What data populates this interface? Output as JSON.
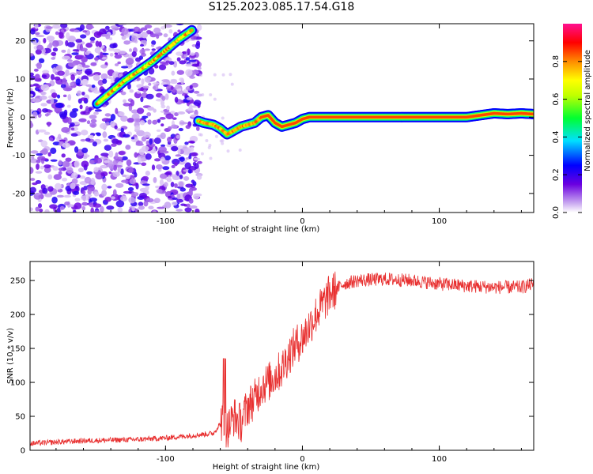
{
  "title": "S125.2023.085.17.54.G18",
  "chart_data": [
    {
      "type": "heatmap",
      "xlabel": "Height of straight line (km)",
      "ylabel": "Frequency (Hz)",
      "xlim": [
        -199,
        169
      ],
      "ylim": [
        -25,
        24.5
      ],
      "x_ticks": [
        -100,
        0,
        100
      ],
      "y_ticks": [
        -20,
        -10,
        0,
        10,
        20
      ],
      "colorbar": {
        "label": "Normalized spectral amplitude",
        "range": [
          0,
          1
        ],
        "ticks": [
          0.0,
          0.2,
          0.4,
          0.6,
          0.8
        ]
      },
      "dominant_frequency_track": {
        "x": [
          -150,
          -140,
          -130,
          -120,
          -110,
          -100,
          -90,
          -80,
          -76,
          -72,
          -65,
          -60,
          -55,
          -50,
          -45,
          -40,
          -35,
          -30,
          -25,
          -20,
          -15,
          -10,
          -5,
          0,
          5,
          10,
          20,
          40,
          60,
          80,
          100,
          110,
          120,
          130,
          140,
          150,
          160,
          169
        ],
        "y": [
          3.5,
          6.5,
          9.5,
          12,
          14.5,
          17.5,
          20.5,
          23,
          -1,
          -1.5,
          -2,
          -3,
          -4.5,
          -3.5,
          -2.5,
          -2,
          -1.5,
          0,
          0.5,
          -1.5,
          -2.5,
          -2,
          -1.5,
          -0.5,
          0,
          0,
          0,
          0,
          0,
          0,
          0,
          0,
          0,
          0.5,
          1,
          0.8,
          1,
          0.8
        ]
      },
      "noise_region_x": [
        -199,
        -75
      ]
    },
    {
      "type": "line",
      "xlabel": "Height of straight line (km)",
      "ylabel": "SNR (10 * v/v)",
      "xlim": [
        -199,
        169
      ],
      "ylim": [
        0,
        278
      ],
      "x_ticks": [
        -100,
        0,
        100
      ],
      "y_ticks": [
        0,
        50,
        100,
        150,
        200,
        250
      ],
      "color": "#e83030",
      "series": [
        {
          "x": [
            -199,
            -180,
            -160,
            -140,
            -120,
            -100,
            -80,
            -65,
            -58,
            -55,
            -50,
            -45,
            -40,
            -35,
            -30,
            -25,
            -20,
            -15,
            -10,
            -5,
            0,
            10,
            20,
            30,
            40,
            60,
            80,
            100,
            120,
            140,
            160,
            169
          ],
          "y": [
            10,
            12,
            14,
            15,
            16,
            18,
            22,
            25,
            45,
            30,
            50,
            40,
            65,
            75,
            95,
            100,
            110,
            120,
            140,
            155,
            165,
            200,
            230,
            245,
            250,
            252,
            250,
            245,
            242,
            240,
            240,
            245
          ]
        }
      ]
    }
  ]
}
